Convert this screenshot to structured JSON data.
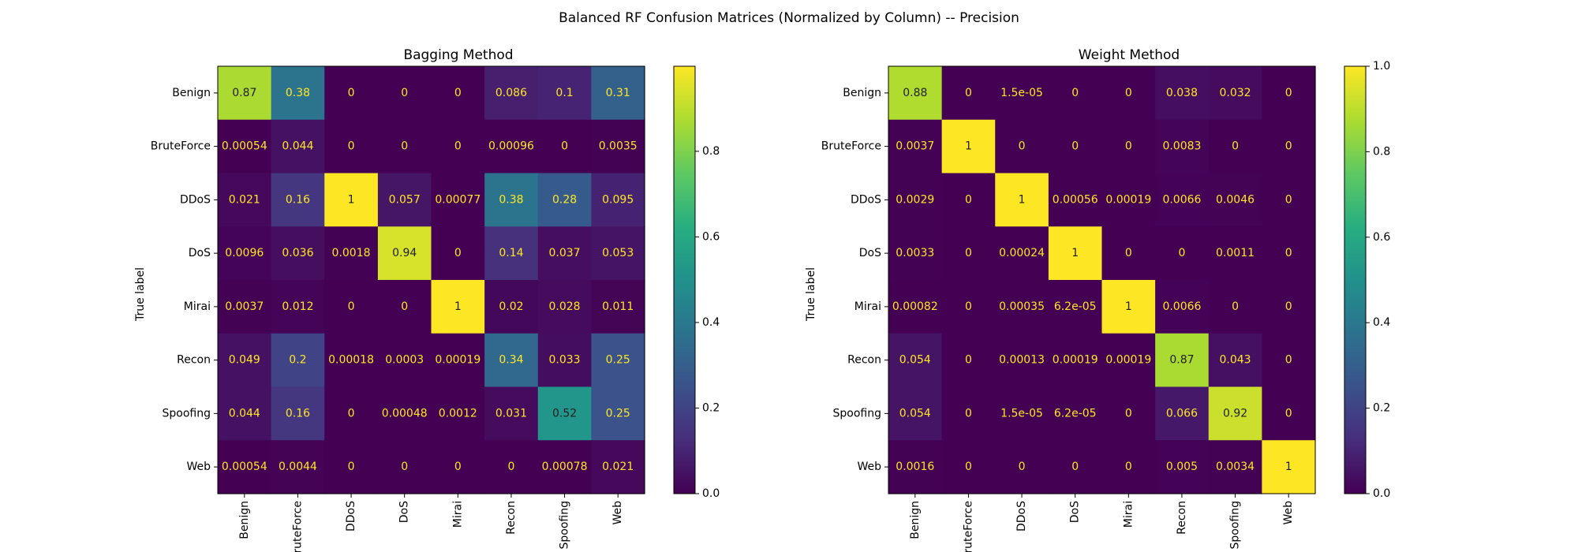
{
  "chart_data": {
    "type": "heatmap",
    "title": "Balanced RF Confusion Matrices (Normalized by Column) -- Precision",
    "colormap": "viridis",
    "labels": [
      "Benign",
      "BruteForce",
      "DDoS",
      "DoS",
      "Mirai",
      "Recon",
      "Spoofing",
      "Web"
    ],
    "axis_labels": {
      "y": "True label",
      "x": ""
    },
    "panels": [
      {
        "title": "Bagging Method",
        "colorbar_range": [
          0,
          0.9988
        ],
        "colorbar_ticks": [
          "0.0",
          "0.2",
          "0.4",
          "0.6",
          "0.8"
        ],
        "matrix": [
          [
            0.87,
            0.38,
            0,
            0,
            0,
            0.086,
            0.1,
            0.31
          ],
          [
            0.00054,
            0.044,
            0,
            0,
            0,
            0.00096,
            0,
            0.0035
          ],
          [
            0.021,
            0.16,
            1,
            0.057,
            0.00077,
            0.38,
            0.28,
            0.095
          ],
          [
            0.0096,
            0.036,
            0.0018,
            0.94,
            0,
            0.14,
            0.037,
            0.053
          ],
          [
            0.0037,
            0.012,
            0,
            0,
            1,
            0.02,
            0.028,
            0.011
          ],
          [
            0.049,
            0.2,
            0.00018,
            0.0003,
            0.00019,
            0.34,
            0.033,
            0.25
          ],
          [
            0.044,
            0.16,
            0,
            0.00048,
            0.0012,
            0.031,
            0.52,
            0.25
          ],
          [
            0.00054,
            0.0044,
            0,
            0,
            0,
            0,
            0.00078,
            0.021
          ]
        ],
        "text": [
          [
            "0.87",
            "0.38",
            "0",
            "0",
            "0",
            "0.086",
            "0.1",
            "0.31"
          ],
          [
            "0.00054",
            "0.044",
            "0",
            "0",
            "0",
            "0.00096",
            "0",
            "0.0035"
          ],
          [
            "0.021",
            "0.16",
            "1",
            "0.057",
            "0.00077",
            "0.38",
            "0.28",
            "0.095"
          ],
          [
            "0.0096",
            "0.036",
            "0.0018",
            "0.94",
            "0",
            "0.14",
            "0.037",
            "0.053"
          ],
          [
            "0.0037",
            "0.012",
            "0",
            "0",
            "1",
            "0.02",
            "0.028",
            "0.011"
          ],
          [
            "0.049",
            "0.2",
            "0.00018",
            "0.0003",
            "0.00019",
            "0.34",
            "0.033",
            "0.25"
          ],
          [
            "0.044",
            "0.16",
            "0",
            "0.00048",
            "0.0012",
            "0.031",
            "0.52",
            "0.25"
          ],
          [
            "0.00054",
            "0.0044",
            "0",
            "0",
            "0",
            "0",
            "0.00078",
            "0.021"
          ]
        ]
      },
      {
        "title": "Weight Method",
        "colorbar_range": [
          0,
          1.0
        ],
        "colorbar_ticks": [
          "0.0",
          "0.2",
          "0.4",
          "0.6",
          "0.8",
          "1.0"
        ],
        "matrix": [
          [
            0.88,
            0,
            1.5e-05,
            0,
            0,
            0.038,
            0.032,
            0
          ],
          [
            0.0037,
            1,
            0,
            0,
            0,
            0.0083,
            0,
            0
          ],
          [
            0.0029,
            0,
            1,
            0.00056,
            0.00019,
            0.0066,
            0.0046,
            0
          ],
          [
            0.0033,
            0,
            0.00024,
            1,
            0,
            0,
            0.0011,
            0
          ],
          [
            0.00082,
            0,
            0.00035,
            6.2e-05,
            1,
            0.0066,
            0,
            0
          ],
          [
            0.054,
            0,
            0.00013,
            0.00019,
            0.00019,
            0.87,
            0.043,
            0
          ],
          [
            0.054,
            0,
            1.5e-05,
            6.2e-05,
            0,
            0.066,
            0.92,
            0
          ],
          [
            0.0016,
            0,
            0,
            0,
            0,
            0.005,
            0.0034,
            1
          ]
        ],
        "text": [
          [
            "0.88",
            "0",
            "1.5e-05",
            "0",
            "0",
            "0.038",
            "0.032",
            "0"
          ],
          [
            "0.0037",
            "1",
            "0",
            "0",
            "0",
            "0.0083",
            "0",
            "0"
          ],
          [
            "0.0029",
            "0",
            "1",
            "0.00056",
            "0.00019",
            "0.0066",
            "0.0046",
            "0"
          ],
          [
            "0.0033",
            "0",
            "0.00024",
            "1",
            "0",
            "0",
            "0.0011",
            "0"
          ],
          [
            "0.00082",
            "0",
            "0.00035",
            "6.2e-05",
            "1",
            "0.0066",
            "0",
            "0"
          ],
          [
            "0.054",
            "0",
            "0.00013",
            "0.00019",
            "0.00019",
            "0.87",
            "0.043",
            "0"
          ],
          [
            "0.054",
            "0",
            "1.5e-05",
            "6.2e-05",
            "0",
            "0.066",
            "0.92",
            "0"
          ],
          [
            "0.0016",
            "0",
            "0",
            "0",
            "0",
            "0.005",
            "0.0034",
            "1"
          ]
        ]
      }
    ]
  }
}
